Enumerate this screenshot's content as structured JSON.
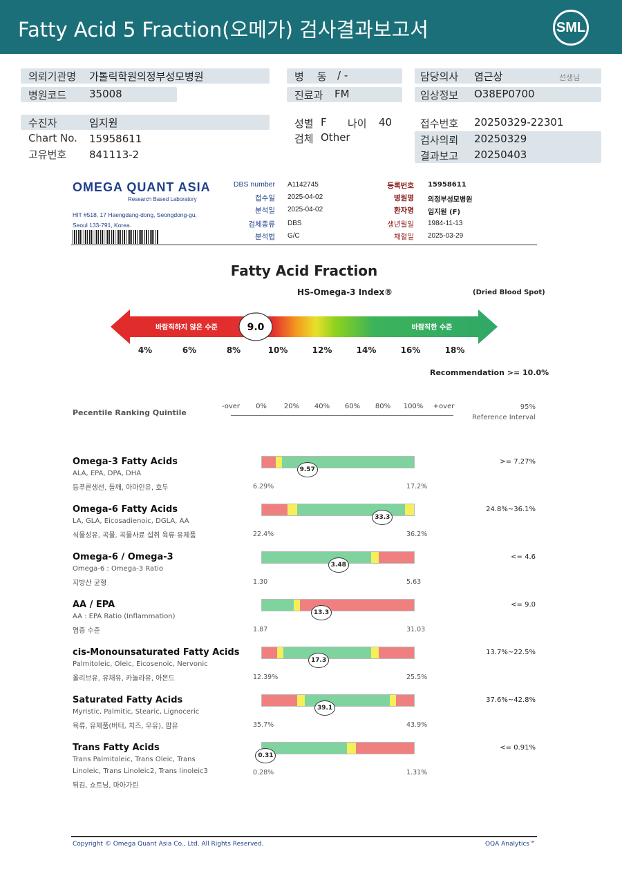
{
  "header": {
    "title": "Fatty Acid 5 Fraction(오메가) 검사결과보고서",
    "logo_text": "SML"
  },
  "info": {
    "inst_label": "의뢰기관명",
    "inst_value": "가톨릭학원의정부성모병원",
    "code_label": "병원코드",
    "code_value": "35008",
    "ward_label": "병    동",
    "ward_value": "/ -",
    "dept_label": "진료과",
    "dept_value": "FM",
    "doctor_label": "담당의사",
    "doctor_value": "염근상",
    "doctor_suffix": "선생님",
    "clinical_label": "임상정보",
    "clinical_value": "O38EP0700",
    "patient_label": "수진자",
    "patient_value": "임지원",
    "chart_label": "Chart No.",
    "chart_value": "15958611",
    "uid_label": "고유번호",
    "uid_value": "841113-2",
    "sex_label": "성별",
    "sex_value": "F",
    "age_label": "나이",
    "age_value": "40",
    "specimen_label": "검체",
    "specimen_value": "Other",
    "receipt_label": "접수번호",
    "receipt_value": "20250329-22301",
    "request_label": "검사의뢰",
    "request_value": "20250329",
    "report_label": "결과보고",
    "report_value": "20250403"
  },
  "oqa": {
    "logo": "OMEGA QUANT ASIA",
    "logo_sub": "Research Based Laboratory",
    "address1": "HIT #518, 17 Haengdang-dong, Seongdong-gu,",
    "address2": "Seoul 133-791, Korea.",
    "dbs_label": "DBS number",
    "dbs_value": "A1142745",
    "recv_label": "접수일",
    "recv_value": "2025-04-02",
    "anal_label": "분석일",
    "anal_value": "2025-04-02",
    "type_label": "검체종류",
    "type_value": "DBS",
    "method_label": "분석법",
    "method_value": "G/C",
    "reg_label": "등록번호",
    "reg_value": "15958611",
    "hosp_label": "병원명",
    "hosp_value": "의정부성모병원",
    "pname_label": "환자명",
    "pname_value": "임지원 (F)",
    "dob_label": "생년월일",
    "dob_value": "1984-11-13",
    "draw_label": "채혈일",
    "draw_value": "2025-03-29"
  },
  "fraction": {
    "title": "Fatty Acid Fraction",
    "index_title": "HS-Omega-3 Index®",
    "sample": "(Dried Blood Spot)",
    "bad_label": "바람직하지 않은 수준",
    "good_label": "바람직한 수준",
    "value": 9.0,
    "value_text": "9.0",
    "ticks": [
      "4%",
      "6%",
      "8%",
      "10%",
      "12%",
      "14%",
      "16%",
      "18%"
    ],
    "recommendation": "Recommendation  >= 10.0%"
  },
  "ranking": {
    "title": "Pecentile Ranking Quintile",
    "scale": [
      "-over",
      "0%",
      "20%",
      "40%",
      "60%",
      "80%",
      "100%",
      "+over"
    ],
    "ref_header1": "95%",
    "ref_header2": "Reference Interval"
  },
  "rows": [
    {
      "title": "Omega-3 Fatty Acids",
      "sub": "ALA, EPA, DPA, DHA",
      "sub2": "",
      "ko": "등푸른생선, 들깨, 아마인유, 호두",
      "min": "6.29%",
      "max": "17.2%",
      "value": 9.57,
      "value_text": "9.57",
      "lo": 6.29,
      "hi": 17.2,
      "ref": ">= 7.27%",
      "segments": [
        {
          "from": 0,
          "to": 0.09,
          "color": "#f08080"
        },
        {
          "from": 0.09,
          "to": 0.13,
          "color": "#f5ef5a"
        },
        {
          "from": 0.13,
          "to": 1,
          "color": "#7fd39e"
        }
      ]
    },
    {
      "title": "Omega-6 Fatty Acids",
      "sub": "LA, GLA, Eicosadienoic, DGLA, AA",
      "sub2": "",
      "ko": "식물성유, 곡물, 곡물사료 섭취 육류·유제품",
      "min": "22.4%",
      "max": "36.2%",
      "value": 33.3,
      "value_text": "33.3",
      "lo": 22.4,
      "hi": 36.2,
      "ref": "24.8%~36.1%",
      "segments": [
        {
          "from": 0,
          "to": 0.17,
          "color": "#f08080"
        },
        {
          "from": 0.17,
          "to": 0.23,
          "color": "#f5ef5a"
        },
        {
          "from": 0.23,
          "to": 0.94,
          "color": "#7fd39e"
        },
        {
          "from": 0.94,
          "to": 1,
          "color": "#f5ef5a"
        }
      ]
    },
    {
      "title": "Omega-6 / Omega-3",
      "sub": "Omega-6 : Omega-3 Ratio",
      "sub2": "",
      "ko": "지방산 균형",
      "min": "1.30",
      "max": "5.63",
      "value": 3.48,
      "value_text": "3.48",
      "lo": 1.3,
      "hi": 5.63,
      "ref": "<= 4.6",
      "segments": [
        {
          "from": 0,
          "to": 0.72,
          "color": "#7fd39e"
        },
        {
          "from": 0.72,
          "to": 0.77,
          "color": "#f5ef5a"
        },
        {
          "from": 0.77,
          "to": 1,
          "color": "#f08080"
        }
      ]
    },
    {
      "title": "AA / EPA",
      "sub": "AA : EPA Ratio (Inflammation)",
      "sub2": "",
      "ko": "염증 수준",
      "min": "1.87",
      "max": "31.03",
      "value": 13.3,
      "value_text": "13.3",
      "lo": 1.87,
      "hi": 31.03,
      "ref": "<= 9.0",
      "segments": [
        {
          "from": 0,
          "to": 0.21,
          "color": "#7fd39e"
        },
        {
          "from": 0.21,
          "to": 0.25,
          "color": "#f5ef5a"
        },
        {
          "from": 0.25,
          "to": 1,
          "color": "#f08080"
        }
      ]
    },
    {
      "title": "cis-Monounsaturated Fatty Acids",
      "sub": "Palmitoleic, Oleic, Eicosenoic, Nervonic",
      "sub2": "",
      "ko": "올리브유, 유채유, 카놀라유, 아몬드",
      "min": "12.39%",
      "max": "25.5%",
      "value": 17.3,
      "value_text": "17.3",
      "lo": 12.39,
      "hi": 25.5,
      "ref": "13.7%~22.5%",
      "segments": [
        {
          "from": 0,
          "to": 0.1,
          "color": "#f08080"
        },
        {
          "from": 0.1,
          "to": 0.14,
          "color": "#f5ef5a"
        },
        {
          "from": 0.14,
          "to": 0.72,
          "color": "#7fd39e"
        },
        {
          "from": 0.72,
          "to": 0.77,
          "color": "#f5ef5a"
        },
        {
          "from": 0.77,
          "to": 1,
          "color": "#f08080"
        }
      ]
    },
    {
      "title": "Saturated Fatty Acids",
      "sub": "Myristic, Palmitic, Stearic, Lignoceric",
      "sub2": "",
      "ko": "육류, 유제품(버터, 치즈, 우유), 팜유",
      "min": "35.7%",
      "max": "43.9%",
      "value": 39.1,
      "value_text": "39.1",
      "lo": 35.7,
      "hi": 43.9,
      "ref": "37.6%~42.8%",
      "segments": [
        {
          "from": 0,
          "to": 0.23,
          "color": "#f08080"
        },
        {
          "from": 0.23,
          "to": 0.28,
          "color": "#f5ef5a"
        },
        {
          "from": 0.28,
          "to": 0.84,
          "color": "#7fd39e"
        },
        {
          "from": 0.84,
          "to": 0.88,
          "color": "#f5ef5a"
        },
        {
          "from": 0.88,
          "to": 1,
          "color": "#f08080"
        }
      ]
    },
    {
      "title": "Trans Fatty Acids",
      "sub": "Trans Palmitoleic, Trans Oleic, Trans",
      "sub2": "Linoleic, Trans Linoleic2, Trans linoleic3",
      "ko": "튀김, 쇼트닝, 마아가린",
      "min": "0.28%",
      "max": "1.31%",
      "value": 0.31,
      "value_text": "0.31",
      "lo": 0.28,
      "hi": 1.31,
      "ref": "<= 0.91%",
      "segments": [
        {
          "from": 0,
          "to": 0.56,
          "color": "#7fd39e"
        },
        {
          "from": 0.56,
          "to": 0.62,
          "color": "#f5ef5a"
        },
        {
          "from": 0.62,
          "to": 1,
          "color": "#f08080"
        }
      ]
    }
  ],
  "footer": {
    "copyright": "Copyright © Omega Quant Asia Co., Ltd.  All Rights Reserved.",
    "brand": "OQA Analytics™"
  }
}
